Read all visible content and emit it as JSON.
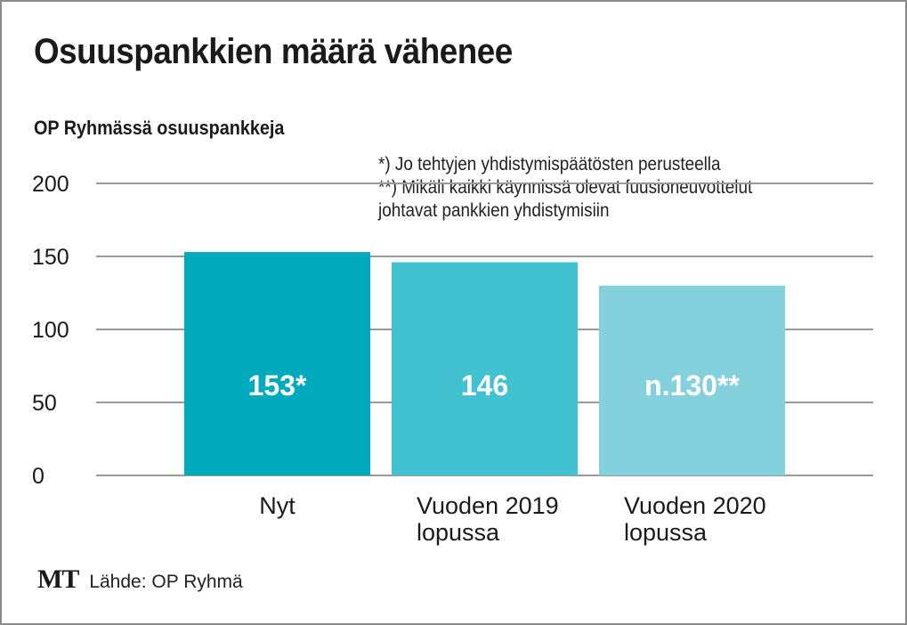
{
  "title": "Osuuspankkien määrä vähenee",
  "subtitle": "OP Ryhmässä osuuspankkeja",
  "notes": [
    "*) Jo tehtyjen yhdistymispäätösten perusteella",
    "**) Mikäli kaikki käynnissä olevat fuusioneuvottelut",
    "johtavat pankkien yhdistymisiin"
  ],
  "footer": {
    "logo": "MT",
    "source": "Lähde: OP Ryhmä"
  },
  "chart_data": {
    "type": "bar",
    "title": "Osuuspankkien määrä vähenee",
    "subtitle": "OP Ryhmässä osuuspankkeja",
    "xlabel": "",
    "ylabel": "",
    "ylim": [
      0,
      200
    ],
    "yticks": [
      0,
      50,
      100,
      150,
      200
    ],
    "grid": true,
    "categories": [
      [
        "Nyt"
      ],
      [
        "Vuoden 2019",
        "lopussa"
      ],
      [
        "Vuoden 2020",
        "lopussa"
      ]
    ],
    "values": [
      153,
      146,
      130
    ],
    "data_labels": [
      "153*",
      "146",
      "n.130**"
    ],
    "colors": [
      "#00aabd",
      "#42c2d0",
      "#84d0dc"
    ],
    "grid_color": "#9a9a9a"
  }
}
